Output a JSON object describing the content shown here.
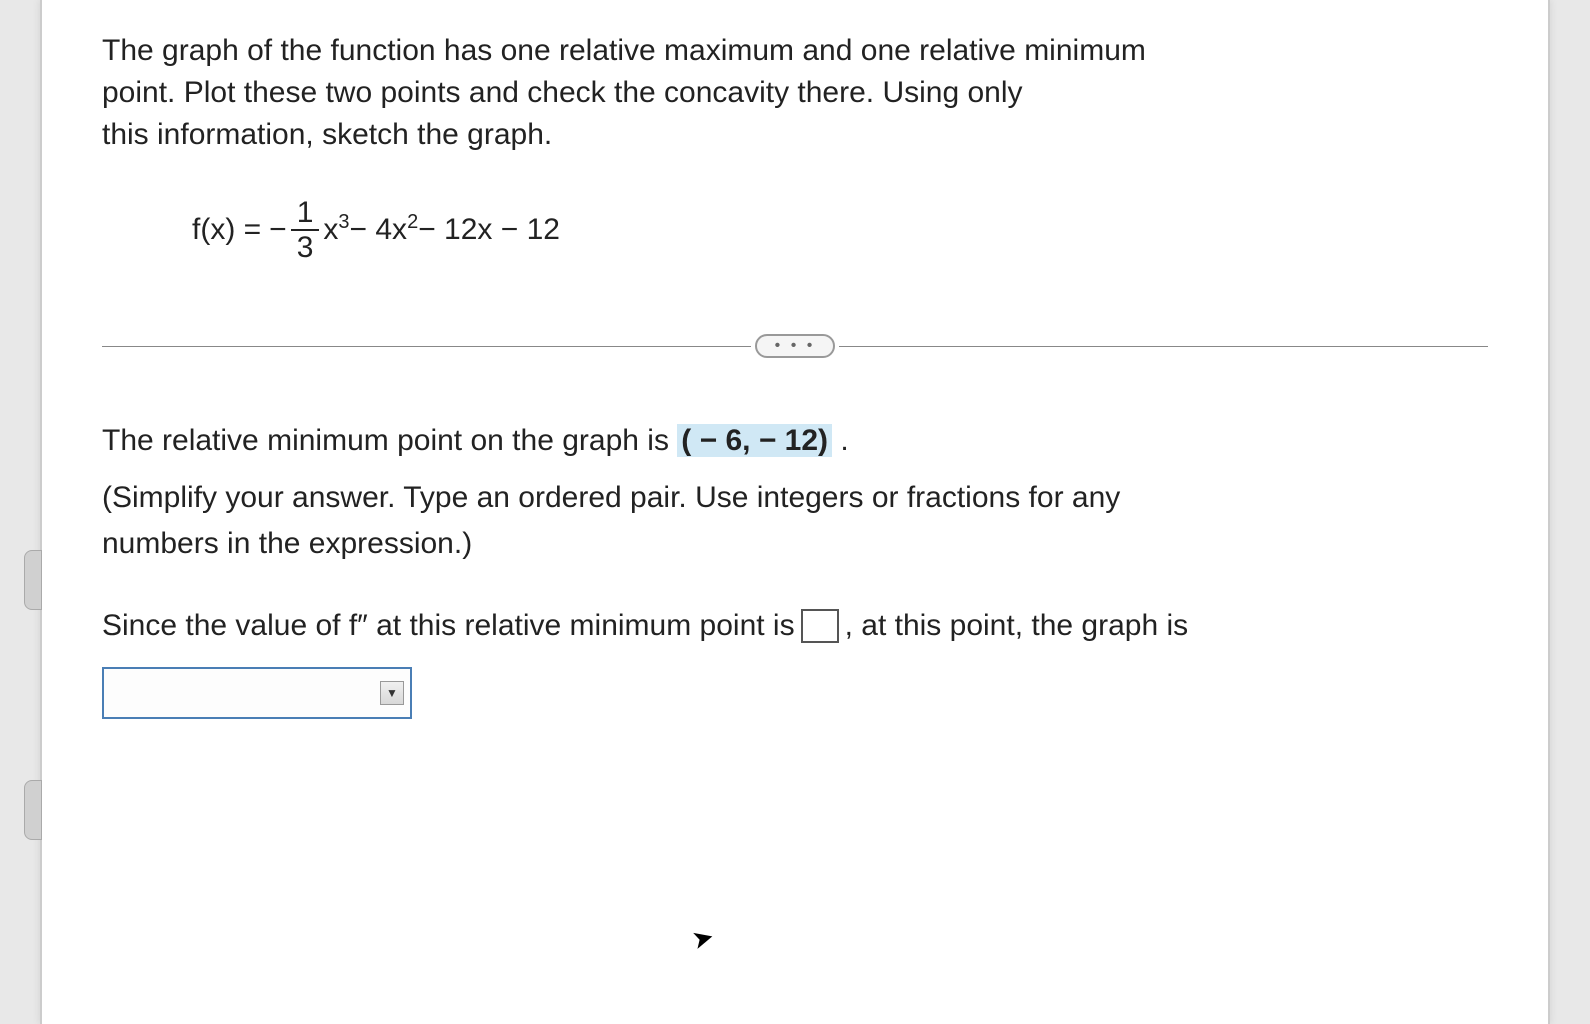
{
  "problem": {
    "line1": "The graph of the function has one relative maximum and one relative minimum",
    "line2": "point. Plot these two points and check the concavity there. Using only",
    "line3": "this information, sketch the graph."
  },
  "formula": {
    "label": "f(x) = ",
    "neg": " − ",
    "frac_num": "1",
    "frac_den": "3",
    "term1_base": "x",
    "term1_exp": "3",
    "minus1": " − 4x",
    "term2_exp": "2",
    "rest": " − 12x − 12"
  },
  "ellipsis": "• • •",
  "answer": {
    "prefix": "The relative minimum point on the graph is ",
    "value": "( − 6, − 12)",
    "period": " .",
    "instruction1": "(Simplify your answer. Type an ordered pair. Use integers or fractions for any",
    "instruction2": "numbers in the expression.)",
    "fill_prefix": "Since the value of f″ at this relative minimum point is ",
    "fill_suffix": ", at this point, the graph is"
  },
  "colors": {
    "highlight_bg": "#d0e8f5",
    "dropdown_border": "#4a7eb5",
    "text": "#222222"
  }
}
